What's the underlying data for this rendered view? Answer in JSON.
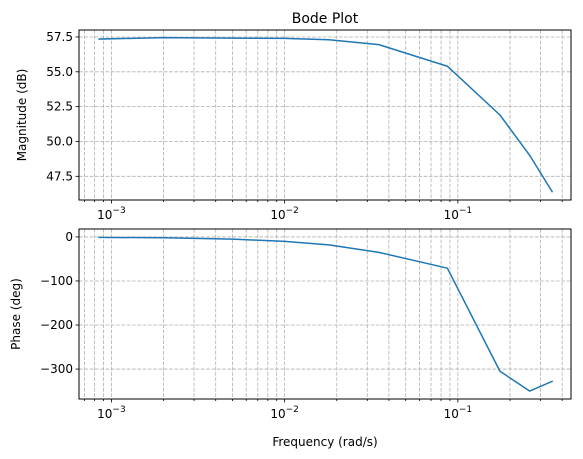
{
  "chart_data": [
    {
      "type": "line",
      "title": "Bode Plot",
      "xlabel": "",
      "ylabel": "Magnitude (dB)",
      "xscale": "log",
      "xlim": [
        0.00065,
        0.45
      ],
      "ylim": [
        45.8,
        58.0
      ],
      "grid": "major and minor",
      "x_ticks": [
        {
          "value": 0.001,
          "base": "10",
          "exp": "−3"
        },
        {
          "value": 0.01,
          "base": "10",
          "exp": "−2"
        },
        {
          "value": 0.1,
          "base": "10",
          "exp": "−1"
        }
      ],
      "y_ticks": [
        {
          "value": 47.5,
          "label": "47.5"
        },
        {
          "value": 50.0,
          "label": "50.0"
        },
        {
          "value": 52.5,
          "label": "52.5"
        },
        {
          "value": 55.0,
          "label": "55.0"
        },
        {
          "value": 57.5,
          "label": "57.5"
        }
      ],
      "series": [
        {
          "color": "#1f77b4",
          "x": [
            0.00085,
            0.002,
            0.005,
            0.01,
            0.018,
            0.035,
            0.087,
            0.175,
            0.26,
            0.35
          ],
          "y": [
            57.35,
            57.45,
            57.42,
            57.4,
            57.3,
            56.95,
            55.4,
            51.9,
            49.0,
            46.4
          ]
        }
      ]
    },
    {
      "type": "line",
      "title": "",
      "xlabel": "Frequency (rad/s)",
      "ylabel": "Phase (deg)",
      "xscale": "log",
      "xlim": [
        0.00065,
        0.45
      ],
      "ylim": [
        -368,
        18
      ],
      "grid": "major and minor",
      "x_ticks": [
        {
          "value": 0.001,
          "base": "10",
          "exp": "−3"
        },
        {
          "value": 0.01,
          "base": "10",
          "exp": "−2"
        },
        {
          "value": 0.1,
          "base": "10",
          "exp": "−1"
        }
      ],
      "y_ticks": [
        {
          "value": 0,
          "label": "0"
        },
        {
          "value": -100,
          "label": "−100"
        },
        {
          "value": -200,
          "label": "−200"
        },
        {
          "value": -300,
          "label": "−300"
        }
      ],
      "series": [
        {
          "color": "#1f77b4",
          "x": [
            0.00085,
            0.002,
            0.005,
            0.01,
            0.018,
            0.035,
            0.087,
            0.175,
            0.26,
            0.35
          ],
          "y": [
            -1,
            -2,
            -5,
            -10,
            -18,
            -35,
            -71,
            -305,
            -350,
            -328
          ]
        }
      ]
    }
  ]
}
